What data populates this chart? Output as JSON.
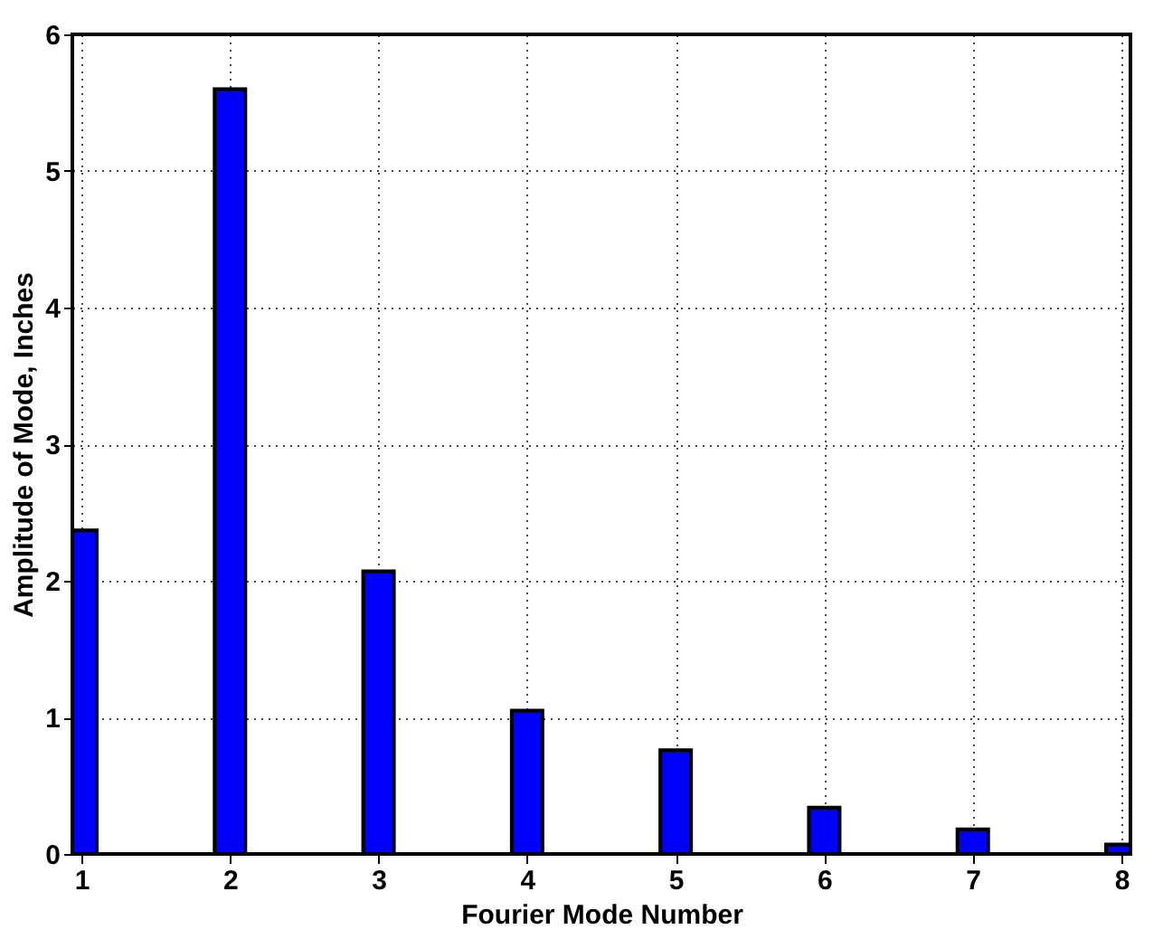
{
  "chart_data": {
    "type": "bar",
    "xlabel": "Fourier Mode Number",
    "ylabel": "Amplitude of Mode, Inches",
    "x": [
      1,
      2,
      3,
      4,
      5,
      6,
      7,
      8
    ],
    "series": [
      {
        "color": "#0000ff",
        "values": [
          2.37,
          5.6,
          2.07,
          1.05,
          0.76,
          0.34,
          0.18,
          0.07
        ]
      }
    ],
    "xlim": [
      1,
      8
    ],
    "xticks": [
      1,
      2,
      3,
      4,
      5,
      6,
      7,
      8
    ],
    "ylim": [
      0,
      6
    ],
    "yticks": [
      0,
      1,
      2,
      3,
      4,
      5,
      6
    ],
    "grid": true
  }
}
